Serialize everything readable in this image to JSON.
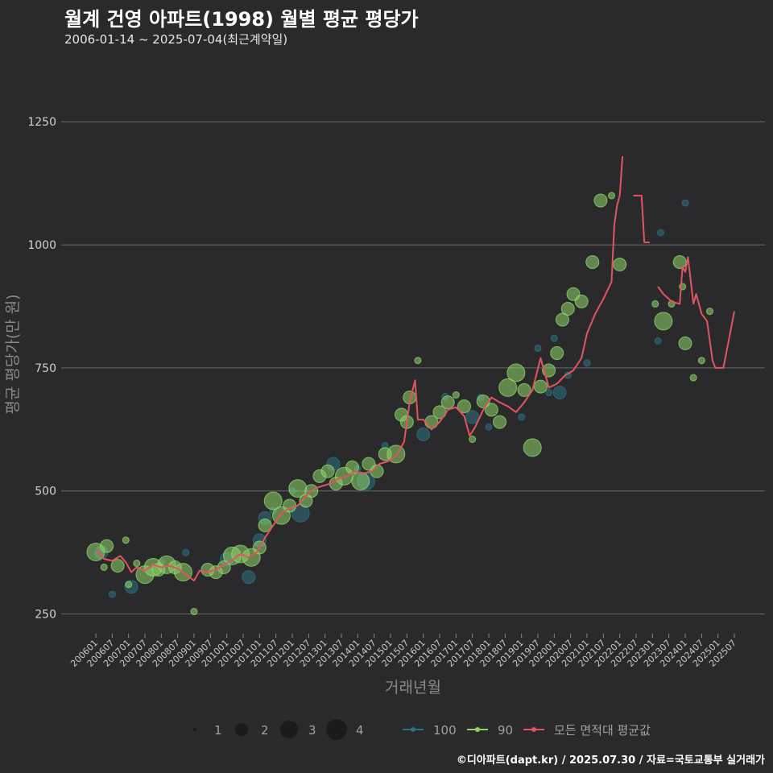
{
  "header": {
    "title": "월계 건영 아파트(1998) 월별 평균 평당가",
    "subtitle": "2006-01-14 ~ 2025-07-04(최근계약일)"
  },
  "caption": "©디아파트(dapt.kr) / 2025.07.30 / 자료=국토교통부 실거래가",
  "colors": {
    "background": "#2a2a2c",
    "grid": "#6a6a6a",
    "area_100": "#2c6f7f",
    "area_90": "#8fd46a",
    "avg_line": "#e05560"
  },
  "chart_data": {
    "type": "scatter",
    "xlabel": "거래년월",
    "ylabel": "평균 평당가(만 원)",
    "ylim": [
      210,
      1360
    ],
    "yticks": [
      250,
      500,
      750,
      1000,
      1250
    ],
    "x_start": "200601",
    "x_end": "202507",
    "xtick_labels": [
      "200601",
      "200607",
      "200701",
      "200707",
      "200801",
      "200807",
      "200901",
      "200907",
      "201001",
      "201007",
      "201101",
      "201107",
      "201201",
      "201207",
      "201301",
      "201307",
      "201401",
      "201407",
      "201501",
      "201507",
      "201601",
      "201607",
      "201701",
      "201707",
      "201801",
      "201807",
      "201901",
      "201907",
      "202001",
      "202007",
      "202101",
      "202107",
      "202201",
      "202207",
      "202301",
      "202307",
      "202401",
      "202407",
      "202501",
      "202507"
    ],
    "size_legend": {
      "title": "",
      "labels": [
        "1",
        "2",
        "3",
        "4"
      ]
    },
    "color_legend": [
      "100",
      "90",
      "모든 면적대 평균값"
    ],
    "series": [
      {
        "name": "모든 면적대 평균값",
        "kind": "line",
        "segments": [
          [
            [
              "200601",
              382
            ],
            [
              "200604",
              362
            ],
            [
              "200607",
              358
            ],
            [
              "200610",
              368
            ],
            [
              "200612",
              355
            ],
            [
              "200702",
              335
            ],
            [
              "200704",
              345
            ],
            [
              "200707",
              338
            ],
            [
              "200710",
              350
            ],
            [
              "200801",
              345
            ],
            [
              "200804",
              348
            ],
            [
              "200807",
              342
            ],
            [
              "200810",
              330
            ],
            [
              "200901",
              318
            ],
            [
              "200903",
              338
            ],
            [
              "200906",
              335
            ],
            [
              "200909",
              340
            ],
            [
              "200912",
              350
            ],
            [
              "201003",
              360
            ],
            [
              "201006",
              372
            ],
            [
              "201009",
              365
            ],
            [
              "201012",
              375
            ],
            [
              "201103",
              405
            ],
            [
              "201106",
              430
            ],
            [
              "201109",
              455
            ],
            [
              "201112",
              465
            ],
            [
              "201203",
              470
            ],
            [
              "201206",
              490
            ],
            [
              "201209",
              505
            ],
            [
              "201212",
              510
            ],
            [
              "201303",
              515
            ],
            [
              "201306",
              525
            ],
            [
              "201309",
              530
            ],
            [
              "201312",
              540
            ],
            [
              "201403",
              535
            ],
            [
              "201406",
              540
            ],
            [
              "201409",
              555
            ],
            [
              "201412",
              560
            ],
            [
              "201503",
              570
            ],
            [
              "201506",
              600
            ],
            [
              "201508",
              680
            ],
            [
              "201510",
              725
            ],
            [
              "201511",
              645
            ],
            [
              "201601",
              645
            ],
            [
              "201604",
              625
            ],
            [
              "201607",
              640
            ],
            [
              "201610",
              665
            ],
            [
              "201701",
              670
            ],
            [
              "201704",
              652
            ],
            [
              "201706",
              612
            ],
            [
              "201708",
              630
            ],
            [
              "201711",
              665
            ],
            [
              "201802",
              690
            ],
            [
              "201805",
              680
            ],
            [
              "201808",
              672
            ],
            [
              "201811",
              660
            ],
            [
              "201902",
              680
            ],
            [
              "201905",
              705
            ],
            [
              "201908",
              770
            ],
            [
              "201911",
              710
            ],
            [
              "202002",
              718
            ],
            [
              "202005",
              735
            ],
            [
              "202008",
              745
            ],
            [
              "202011",
              770
            ],
            [
              "202101",
              820
            ],
            [
              "202104",
              860
            ],
            [
              "202107",
              890
            ],
            [
              "202110",
              925
            ],
            [
              "202111",
              1040
            ],
            [
              "202112",
              1080
            ],
            [
              "202201",
              1100
            ],
            [
              "202202",
              1180
            ]
          ],
          [
            [
              "202206",
              1100
            ],
            [
              "202209",
              1100
            ],
            [
              "202210",
              1005
            ],
            [
              "202212",
              1005
            ]
          ],
          [
            [
              "202303",
              915
            ],
            [
              "202305",
              900
            ],
            [
              "202308",
              885
            ],
            [
              "202311",
              880
            ],
            [
              "202312",
              955
            ],
            [
              "202401",
              945
            ],
            [
              "202402",
              975
            ],
            [
              "202404",
              880
            ],
            [
              "202405",
              900
            ],
            [
              "202407",
              860
            ],
            [
              "202409",
              845
            ],
            [
              "202411",
              765
            ],
            [
              "202412",
              750
            ],
            [
              "202503",
              750
            ],
            [
              "202507",
              865
            ]
          ]
        ]
      },
      {
        "name": "100",
        "kind": "scatter",
        "points": [
          [
            "200603",
            375,
            2
          ],
          [
            "200607",
            290,
            1
          ],
          [
            "200702",
            305,
            2
          ],
          [
            "200801",
            355,
            1
          ],
          [
            "200810",
            375,
            1
          ],
          [
            "201001",
            362,
            2
          ],
          [
            "201009",
            325,
            2
          ],
          [
            "201101",
            400,
            2
          ],
          [
            "201103",
            445,
            2
          ],
          [
            "201106",
            460,
            1
          ],
          [
            "201201",
            500,
            1
          ],
          [
            "201204",
            455,
            3
          ],
          [
            "201304",
            555,
            2
          ],
          [
            "201401",
            545,
            1
          ],
          [
            "201404",
            520,
            3
          ],
          [
            "201411",
            592,
            1
          ],
          [
            "201601",
            615,
            2
          ],
          [
            "201609",
            692,
            1
          ],
          [
            "201707",
            650,
            2
          ],
          [
            "201710",
            690,
            1
          ],
          [
            "201801",
            630,
            1
          ],
          [
            "201901",
            650,
            1
          ],
          [
            "201907",
            790,
            1
          ],
          [
            "201911",
            700,
            1
          ],
          [
            "202001",
            810,
            1
          ],
          [
            "202003",
            700,
            2
          ],
          [
            "202006",
            735,
            1
          ],
          [
            "202101",
            760,
            1
          ],
          [
            "202303",
            805,
            1
          ],
          [
            "202401",
            1085,
            1
          ],
          [
            "202304",
            1025,
            1
          ]
        ]
      },
      {
        "name": "90",
        "kind": "scatter",
        "points": [
          [
            "200601",
            376,
            3
          ],
          [
            "200604",
            345,
            1
          ],
          [
            "200605",
            388,
            2
          ],
          [
            "200609",
            348,
            2
          ],
          [
            "200612",
            400,
            1
          ],
          [
            "200701",
            310,
            1
          ],
          [
            "200704",
            353,
            1
          ],
          [
            "200707",
            330,
            3
          ],
          [
            "200710",
            345,
            3
          ],
          [
            "200712",
            340,
            2
          ],
          [
            "200803",
            350,
            3
          ],
          [
            "200806",
            345,
            2
          ],
          [
            "200809",
            335,
            3
          ],
          [
            "200901",
            255,
            1
          ],
          [
            "200906",
            340,
            2
          ],
          [
            "200909",
            335,
            2
          ],
          [
            "200912",
            345,
            2
          ],
          [
            "201003",
            368,
            3
          ],
          [
            "201006",
            372,
            3
          ],
          [
            "201010",
            365,
            3
          ],
          [
            "201101",
            385,
            2
          ],
          [
            "201103",
            430,
            2
          ],
          [
            "201106",
            480,
            3
          ],
          [
            "201109",
            450,
            3
          ],
          [
            "201112",
            470,
            2
          ],
          [
            "201203",
            505,
            3
          ],
          [
            "201206",
            480,
            2
          ],
          [
            "201208",
            500,
            2
          ],
          [
            "201211",
            530,
            2
          ],
          [
            "201302",
            540,
            2
          ],
          [
            "201305",
            515,
            2
          ],
          [
            "201308",
            530,
            3
          ],
          [
            "201311",
            548,
            2
          ],
          [
            "201402",
            520,
            3
          ],
          [
            "201405",
            555,
            2
          ],
          [
            "201408",
            540,
            2
          ],
          [
            "201411",
            575,
            2
          ],
          [
            "201503",
            575,
            3
          ],
          [
            "201505",
            655,
            2
          ],
          [
            "201507",
            640,
            2
          ],
          [
            "201508",
            690,
            2
          ],
          [
            "201511",
            765,
            1
          ],
          [
            "201604",
            640,
            2
          ],
          [
            "201607",
            660,
            2
          ],
          [
            "201610",
            680,
            2
          ],
          [
            "201701",
            695,
            1
          ],
          [
            "201704",
            672,
            2
          ],
          [
            "201707",
            605,
            1
          ],
          [
            "201711",
            682,
            2
          ],
          [
            "201802",
            665,
            2
          ],
          [
            "201805",
            640,
            2
          ],
          [
            "201808",
            710,
            3
          ],
          [
            "201811",
            740,
            3
          ],
          [
            "201902",
            705,
            2
          ],
          [
            "201905",
            588,
            3
          ],
          [
            "201908",
            712,
            2
          ],
          [
            "201911",
            745,
            2
          ],
          [
            "202002",
            780,
            2
          ],
          [
            "202004",
            848,
            2
          ],
          [
            "202006",
            870,
            2
          ],
          [
            "202008",
            900,
            2
          ],
          [
            "202011",
            885,
            2
          ],
          [
            "202103",
            965,
            2
          ],
          [
            "202106",
            1090,
            2
          ],
          [
            "202110",
            1100,
            1
          ],
          [
            "202201",
            960,
            2
          ],
          [
            "202302",
            880,
            1
          ],
          [
            "202305",
            845,
            3
          ],
          [
            "202308",
            880,
            1
          ],
          [
            "202311",
            965,
            2
          ],
          [
            "202312",
            915,
            1
          ],
          [
            "202401",
            800,
            2
          ],
          [
            "202404",
            730,
            1
          ],
          [
            "202407",
            765,
            1
          ],
          [
            "202410",
            865,
            1
          ]
        ]
      }
    ]
  }
}
